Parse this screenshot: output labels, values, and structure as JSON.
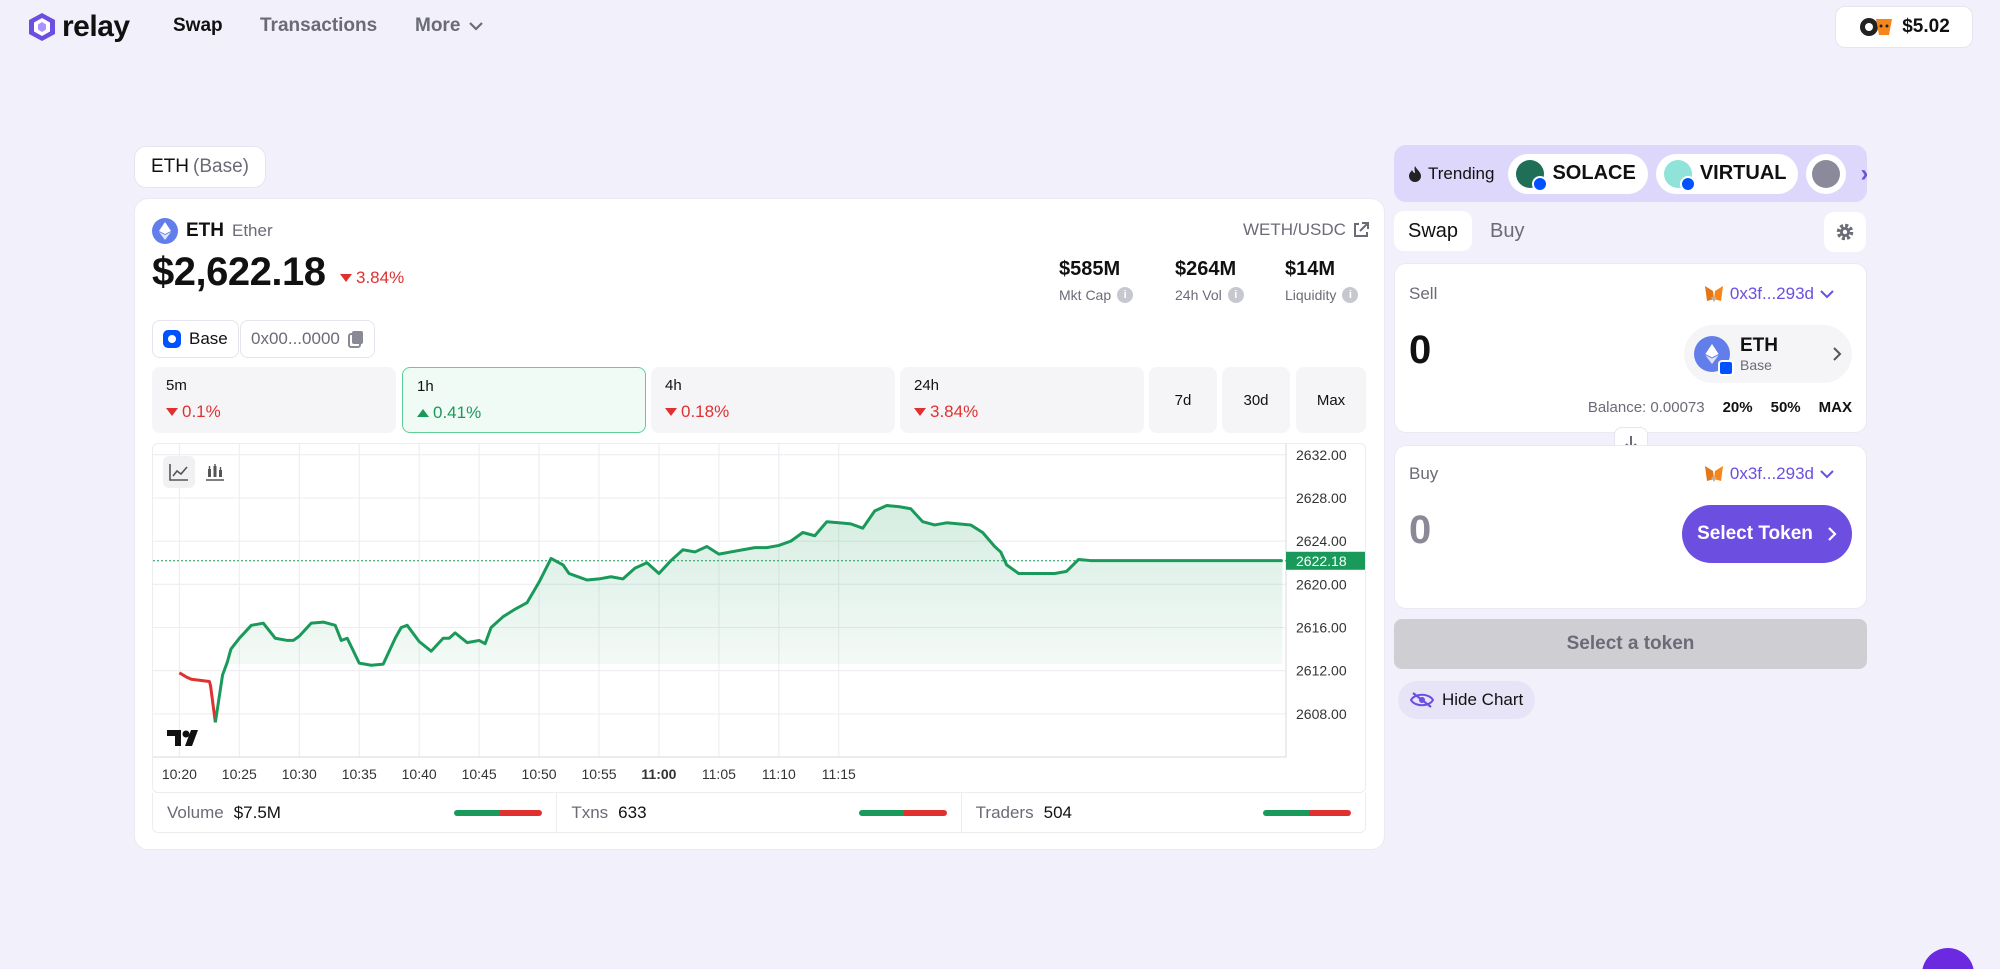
{
  "nav": {
    "brand": "relay",
    "links": [
      "Swap",
      "Transactions",
      "More"
    ],
    "wallet_balance": "$5.02"
  },
  "pair_tab": {
    "symbol": "ETH",
    "chain": "(Base)"
  },
  "token": {
    "symbol": "ETH",
    "name": "Ether",
    "price": "$2,622.18",
    "change": "3.84%",
    "pair": "WETH/USDC"
  },
  "stats": [
    {
      "value": "$585M",
      "label": "Mkt Cap"
    },
    {
      "value": "$264M",
      "label": "24h Vol"
    },
    {
      "value": "$14M",
      "label": "Liquidity"
    }
  ],
  "chips": {
    "chain": "Base",
    "address": "0x00...0000"
  },
  "timeframes": [
    {
      "label": "5m",
      "value": "0.1%",
      "dir": "down"
    },
    {
      "label": "1h",
      "value": "0.41%",
      "dir": "up"
    },
    {
      "label": "4h",
      "value": "0.18%",
      "dir": "down"
    },
    {
      "label": "24h",
      "value": "3.84%",
      "dir": "down"
    }
  ],
  "tf_small": [
    "7d",
    "30d",
    "Max"
  ],
  "chart_data": {
    "type": "line",
    "x_ticks": [
      "10:20",
      "10:25",
      "10:30",
      "10:35",
      "10:40",
      "10:45",
      "10:50",
      "10:55",
      "11:00",
      "11:05",
      "11:10",
      "11:15"
    ],
    "y_ticks": [
      "2632.00",
      "2628.00",
      "2624.00",
      "2620.00",
      "2616.00",
      "2612.00",
      "2608.00"
    ],
    "ylim": [
      2604,
      2633
    ],
    "current_price_label": "2622.18",
    "current_price": 2622.18,
    "baseline_price": 2612.6,
    "series": [
      {
        "x_minutes": [
          0,
          0.6,
          1,
          2.5,
          2.6,
          3,
          3.6,
          4,
          4.3,
          5,
          6,
          7,
          8,
          9,
          9.5,
          10,
          11,
          12,
          13,
          13.5,
          14,
          15,
          16,
          17,
          18,
          18.5,
          19,
          20,
          21,
          22,
          22.5,
          23,
          24,
          25,
          25.5,
          26,
          27,
          28,
          29,
          30,
          30.5,
          31,
          32,
          32.5,
          33,
          34,
          35,
          36,
          37,
          38,
          39,
          40,
          41,
          42,
          43,
          44,
          45,
          46,
          47,
          48,
          49,
          50,
          51,
          52,
          53,
          54,
          55,
          56,
          57,
          58,
          59,
          60,
          61,
          62,
          63,
          64,
          65,
          66,
          67,
          68,
          68.5,
          69,
          70,
          71,
          72,
          73,
          74,
          75,
          76,
          77,
          78,
          79,
          80,
          81,
          82,
          83,
          84,
          85,
          86,
          87,
          88,
          89,
          90,
          91,
          92
        ],
        "values": [
          2611.8,
          2611.4,
          2611.2,
          2611.0,
          2610.6,
          2607.2,
          2611.6,
          2612.8,
          2614.0,
          2615.0,
          2616.2,
          2616.4,
          2615.0,
          2614.8,
          2614.8,
          2615.2,
          2616.4,
          2616.5,
          2616.2,
          2614.8,
          2615.0,
          2612.7,
          2612.5,
          2612.6,
          2615.0,
          2616.0,
          2616.2,
          2614.7,
          2613.8,
          2615.0,
          2615.0,
          2615.5,
          2614.6,
          2614.8,
          2614.5,
          2616.0,
          2617.0,
          2617.7,
          2618.3,
          2620.2,
          2621.3,
          2622.4,
          2621.8,
          2621.0,
          2620.8,
          2620.4,
          2620.5,
          2620.7,
          2620.5,
          2621.5,
          2622.0,
          2621.0,
          2622.2,
          2623.2,
          2623.0,
          2623.5,
          2622.8,
          2623.0,
          2623.2,
          2623.4,
          2623.4,
          2623.6,
          2624.0,
          2624.8,
          2624.5,
          2625.8,
          2625.7,
          2625.6,
          2625.2,
          2626.8,
          2627.3,
          2627.2,
          2627.0,
          2625.8,
          2625.5,
          2625.7,
          2625.6,
          2625.5,
          2624.8,
          2623.5,
          2623.0,
          2621.8,
          2621.0,
          2621.0,
          2621.0,
          2621.0,
          2621.2,
          2622.3,
          2622.2,
          2622.2,
          2622.2,
          2622.2,
          2622.2,
          2622.2,
          2622.2,
          2622.2,
          2622.2,
          2622.2,
          2622.2,
          2622.2,
          2622.2,
          2622.2,
          2622.2,
          2622.2,
          2622.2
        ]
      }
    ]
  },
  "footer": [
    {
      "label": "Volume",
      "value": "$7.5M",
      "buy_ratio": 0.52
    },
    {
      "label": "Txns",
      "value": "633",
      "buy_ratio": 0.52
    },
    {
      "label": "Traders",
      "value": "504",
      "buy_ratio": 0.52
    }
  ],
  "trending": {
    "label": "Trending",
    "tokens": [
      "SOLACE",
      "VIRTUAL"
    ]
  },
  "swap": {
    "tabs": [
      "Swap",
      "Buy"
    ],
    "sell_label": "Sell",
    "buy_label": "Buy",
    "address": "0x3f...293d",
    "sell_amount": "0",
    "buy_amount": "0",
    "sell_token": "ETH",
    "sell_chain": "Base",
    "balance": "Balance: 0.00073",
    "pct_buttons": [
      "20%",
      "50%",
      "MAX"
    ],
    "select_token": "Select Token",
    "cta": "Select a token",
    "hide_chart": "Hide Chart"
  },
  "colors": {
    "accent": "#6c4ee0",
    "up": "#1a9a5a",
    "down": "#e03131"
  }
}
